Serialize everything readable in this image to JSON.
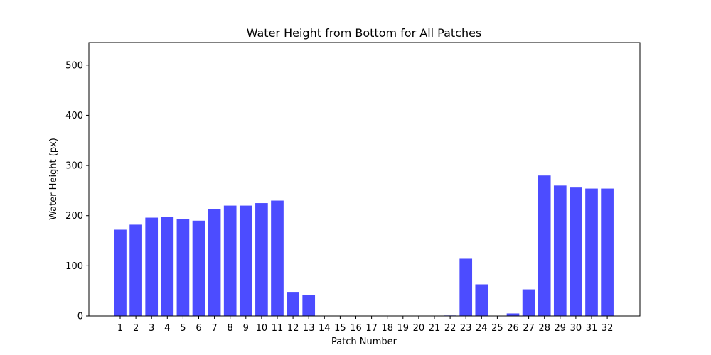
{
  "chart_data": {
    "type": "bar",
    "title": "Water Height from Bottom for All Patches",
    "xlabel": "Patch Number",
    "ylabel": "Water Height (px)",
    "categories": [
      "1",
      "2",
      "3",
      "4",
      "5",
      "6",
      "7",
      "8",
      "9",
      "10",
      "11",
      "12",
      "13",
      "14",
      "15",
      "16",
      "17",
      "18",
      "19",
      "20",
      "21",
      "22",
      "23",
      "24",
      "25",
      "26",
      "27",
      "28",
      "29",
      "30",
      "31",
      "32"
    ],
    "values": [
      172,
      182,
      196,
      198,
      193,
      190,
      213,
      220,
      220,
      225,
      230,
      48,
      42,
      0,
      0,
      0,
      0,
      0,
      0,
      0,
      0,
      1,
      114,
      63,
      0,
      5,
      53,
      280,
      260,
      256,
      254,
      254
    ],
    "ylim": [
      0,
      545
    ],
    "yticks": [
      0,
      100,
      200,
      300,
      400,
      500
    ],
    "bar_color": "#4c4cff",
    "grid": false,
    "legend": "none"
  }
}
